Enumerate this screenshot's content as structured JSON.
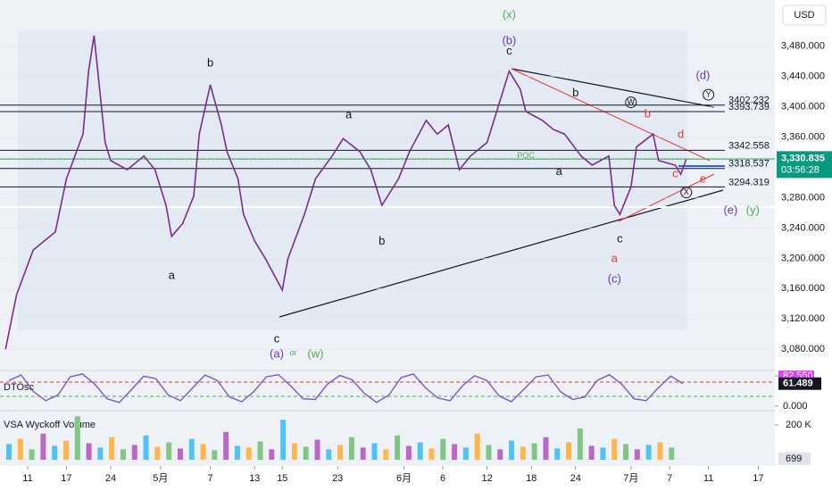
{
  "chart_data": {
    "type": "line",
    "currency": "USD",
    "color": "#7b2d8e",
    "x": [
      1,
      3,
      6,
      10,
      12,
      15,
      16,
      17,
      19,
      20,
      23,
      26,
      28,
      30,
      31,
      33,
      35,
      36,
      38,
      40,
      41,
      43,
      44,
      46,
      48,
      51,
      52,
      55,
      57,
      60,
      62,
      65,
      67,
      69,
      72,
      74,
      77,
      79,
      81,
      83,
      85,
      88,
      90,
      92,
      94,
      95,
      98,
      100,
      102,
      105,
      107,
      110,
      111,
      112,
      114,
      115,
      118,
      119,
      122,
      123,
      124
    ],
    "values": [
      3080,
      3152,
      3211,
      3235,
      3305,
      3364,
      3447,
      3494,
      3353,
      3329,
      3317,
      3335,
      3317,
      3270,
      3229,
      3246,
      3282,
      3364,
      3429,
      3376,
      3341,
      3305,
      3258,
      3223,
      3199,
      3158,
      3199,
      3258,
      3305,
      3335,
      3358,
      3341,
      3317,
      3270,
      3305,
      3341,
      3382,
      3364,
      3376,
      3317,
      3335,
      3353,
      3400,
      3447,
      3423,
      3394,
      3382,
      3370,
      3364,
      3335,
      3323,
      3335,
      3270,
      3258,
      3294,
      3347,
      3364,
      3329,
      3323,
      3311,
      3331
    ],
    "xlim": [
      0,
      140
    ],
    "xticks": [
      {
        "value": 5,
        "label": "11"
      },
      {
        "value": 12,
        "label": "17"
      },
      {
        "value": 20,
        "label": "24"
      },
      {
        "value": 29,
        "label": "5月"
      },
      {
        "value": 38,
        "label": "7"
      },
      {
        "value": 46,
        "label": "13"
      },
      {
        "value": 51,
        "label": "15"
      },
      {
        "value": 61,
        "label": "23"
      },
      {
        "value": 73,
        "label": "6月"
      },
      {
        "value": 80,
        "label": "6"
      },
      {
        "value": 88,
        "label": "12"
      },
      {
        "value": 96,
        "label": "18"
      },
      {
        "value": 104,
        "label": "24"
      },
      {
        "value": 114,
        "label": "7月"
      },
      {
        "value": 121,
        "label": "7"
      },
      {
        "value": 128,
        "label": "11"
      },
      {
        "value": 137,
        "label": "17"
      }
    ],
    "ylim": [
      3052,
      3541
    ],
    "yticks": [
      {
        "value": 3080,
        "label": "3,080.000"
      },
      {
        "value": 3120,
        "label": "3,120.000"
      },
      {
        "value": 3160,
        "label": "3,160.000"
      },
      {
        "value": 3200,
        "label": "3,200.000"
      },
      {
        "value": 3240,
        "label": "3,240.000"
      },
      {
        "value": 3280,
        "label": "3,280.000"
      },
      {
        "value": 3320,
        "label": "3,320.000"
      },
      {
        "value": 3360,
        "label": "3,360.000"
      },
      {
        "value": 3400,
        "label": "3,400.000"
      },
      {
        "value": 3440,
        "label": "3,440.000"
      },
      {
        "value": 3480,
        "label": "3,480.000"
      }
    ],
    "levels": [
      3402.232,
      3393.739,
      3342.558,
      3318.537,
      3294.319
    ],
    "last": {
      "value": 3330.835,
      "label": "3,330.835"
    },
    "countdown": "03:56:28",
    "annotations": [
      {
        "text": "(x)",
        "x": 92,
        "y": 3521,
        "color": "#4caf50"
      },
      {
        "text": "(b)",
        "x": 92,
        "y": 3487,
        "color": "#673ab7"
      },
      {
        "text": "c",
        "x": 92,
        "y": 3473,
        "color": "#131722"
      },
      {
        "text": "b",
        "x": 38,
        "y": 3457,
        "color": "#131722"
      },
      {
        "text": "(d)",
        "x": 127,
        "y": 3441,
        "color": "#673ab7"
      },
      {
        "text": "Y",
        "x": 128,
        "y": 3416,
        "color": "#131722",
        "circled": true
      },
      {
        "text": "b",
        "x": 104,
        "y": 3418,
        "color": "#131722"
      },
      {
        "text": "W",
        "x": 114,
        "y": 3406,
        "color": "#131722",
        "circled": true
      },
      {
        "text": "b",
        "x": 117,
        "y": 3390,
        "color": "#e53935"
      },
      {
        "text": "a",
        "x": 63,
        "y": 3389,
        "color": "#131722"
      },
      {
        "text": "d",
        "x": 123,
        "y": 3363,
        "color": "#e53935"
      },
      {
        "text": "POC",
        "x": 95,
        "y": 3335,
        "color": "#4caf50"
      },
      {
        "text": "a",
        "x": 101,
        "y": 3314,
        "color": "#131722"
      },
      {
        "text": "e",
        "x": 127,
        "y": 3304,
        "color": "#e53935"
      },
      {
        "text": "c",
        "x": 122,
        "y": 3311,
        "color": "#e53935"
      },
      {
        "text": "X",
        "x": 124,
        "y": 3287,
        "color": "#131722",
        "circled": true
      },
      {
        "text": "(e)",
        "x": 132,
        "y": 3263,
        "color": "#673ab7"
      },
      {
        "text": "(y)",
        "x": 136,
        "y": 3263,
        "color": "#4caf50"
      },
      {
        "text": "b",
        "x": 69,
        "y": 3222,
        "color": "#131722"
      },
      {
        "text": "c",
        "x": 112,
        "y": 3225,
        "color": "#131722"
      },
      {
        "text": "a",
        "x": 111,
        "y": 3199,
        "color": "#e53935"
      },
      {
        "text": "a",
        "x": 31,
        "y": 3177,
        "color": "#131722"
      },
      {
        "text": "(c)",
        "x": 111,
        "y": 3172,
        "color": "#673ab7"
      },
      {
        "text": "c",
        "x": 50,
        "y": 3093,
        "color": "#131722"
      },
      {
        "text": "(a)",
        "x": 50,
        "y": 3073,
        "color": "#673ab7"
      },
      {
        "text": "or",
        "x": 53,
        "y": 3075,
        "color": "#4caf50"
      },
      {
        "text": "(w)",
        "x": 57,
        "y": 3073,
        "color": "#4caf50"
      }
    ],
    "oscillator": {
      "name": "DTOsc",
      "color": "#7e57c2",
      "values": [
        70,
        85,
        40,
        15,
        30,
        80,
        88,
        60,
        20,
        10,
        45,
        82,
        75,
        30,
        15,
        50,
        85,
        70,
        25,
        12,
        40,
        80,
        86,
        55,
        20,
        18,
        60,
        84,
        72,
        35,
        10,
        30,
        78,
        88,
        50,
        22,
        15,
        55,
        83,
        70,
        28,
        12,
        45,
        80,
        85,
        40,
        18,
        25,
        70,
        86,
        60,
        20,
        15,
        50,
        82,
        61.489
      ],
      "ylim": [
        -10,
        95
      ],
      "yticks": [
        {
          "value": 82.55,
          "label": "82.550"
        },
        {
          "value": 0,
          "label": "0.000"
        }
      ]
    },
    "volume": {
      "name": "VSA Wyckoff Volume",
      "values": [
        90000,
        120000,
        60000,
        150000,
        80000,
        110000,
        250000,
        95000,
        70000,
        130000,
        60000,
        85000,
        140000,
        75000,
        100000,
        65000,
        120000,
        90000,
        55000,
        160000,
        80000,
        70000,
        105000,
        60000,
        230000,
        95000,
        75000,
        115000,
        60000,
        85000,
        130000,
        70000,
        95000,
        60000,
        140000,
        80000,
        100000,
        65000,
        120000,
        90000,
        70000,
        150000,
        85000,
        60000,
        110000,
        75000,
        95000,
        130000,
        65000,
        100000,
        180000,
        80000,
        70000,
        120000,
        90000,
        60000,
        85000,
        100000,
        70000,
        699
      ],
      "ylim": [
        0,
        272000
      ],
      "yticks": [
        {
          "value": 200000,
          "label": "200 K"
        }
      ],
      "current": 699
    }
  }
}
